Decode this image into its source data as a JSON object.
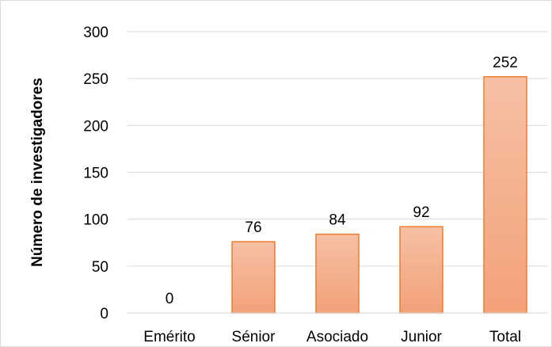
{
  "chart_data": {
    "type": "bar",
    "title": "",
    "xlabel": "",
    "ylabel": "Número de investigadores",
    "categories": [
      "Emérito",
      "Sénior",
      "Asociado",
      "Junior",
      "Total"
    ],
    "values": [
      0,
      76,
      84,
      92,
      252
    ],
    "data_labels": [
      "0",
      "76",
      "84",
      "92",
      "252"
    ],
    "ylim": [
      0,
      300
    ],
    "y_ticks": [
      0,
      50,
      100,
      150,
      200,
      250,
      300
    ],
    "y_tick_labels": [
      "0",
      "50",
      "100",
      "150",
      "200",
      "250",
      "300"
    ],
    "grid": true,
    "legend": "none",
    "colors": {
      "bar_fill_top": "#f6c0a4",
      "bar_fill_bottom": "#f3a17a",
      "bar_stroke": "#ed7d31",
      "gridline": "#d9d9d9",
      "axis_line": "#d9d9d9"
    }
  }
}
